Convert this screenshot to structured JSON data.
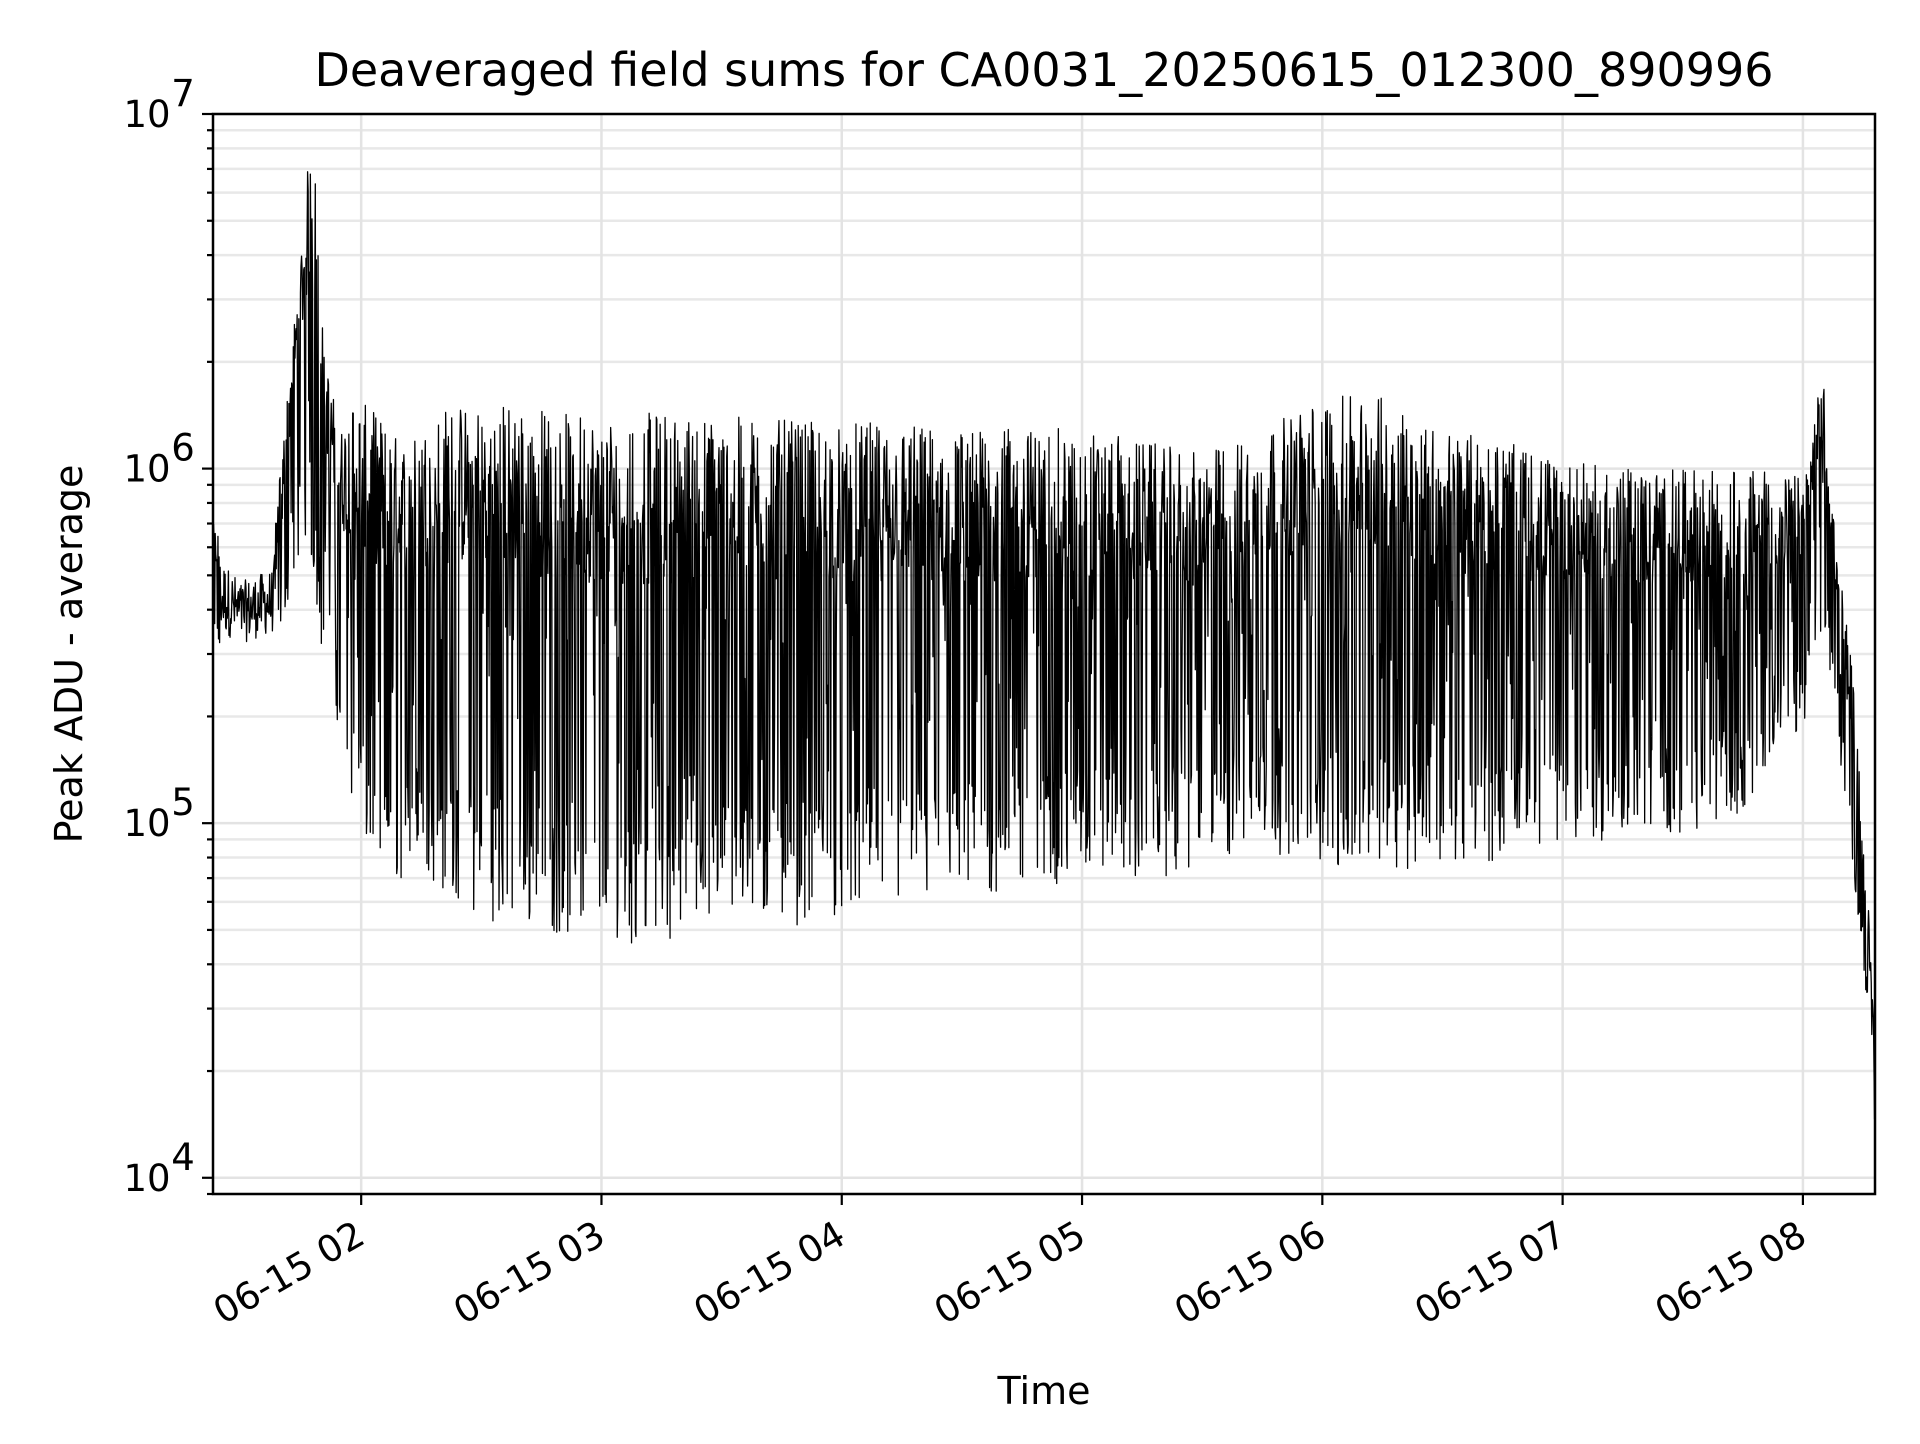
{
  "chart_data": {
    "type": "line",
    "title": "Deaveraged field sums for CA0031_20250615_012300_890996",
    "xlabel": "Time",
    "ylabel": "Peak ADU - average",
    "yscale": "log",
    "ylim": [
      9000,
      10000000
    ],
    "xlim": [
      "2025-06-15T01:23:00",
      "2025-06-15T08:18:00"
    ],
    "x_ticks": [
      "06-15 02",
      "06-15 03",
      "06-15 04",
      "06-15 05",
      "06-15 06",
      "06-15 07",
      "06-15 08"
    ],
    "y_ticks": [
      10000,
      100000,
      1000000,
      10000000
    ],
    "grid": true,
    "line_color": "#000000",
    "series": [
      {
        "x": [
          "2025-06-15T01:23:00",
          "2025-06-15T01:30:00",
          "2025-06-15T01:38:00",
          "2025-06-15T01:44:00",
          "2025-06-15T01:47:00",
          "2025-06-15T01:49:00",
          "2025-06-15T01:50:00",
          "2025-06-15T01:52:00",
          "2025-06-15T01:55:00",
          "2025-06-15T01:58:00",
          "2025-06-15T02:05:00",
          "2025-06-15T02:10:00",
          "2025-06-15T02:15:00",
          "2025-06-15T02:20:00",
          "2025-06-15T02:30:00",
          "2025-06-15T02:40:00",
          "2025-06-15T02:50:00",
          "2025-06-15T03:00:00",
          "2025-06-15T03:10:00",
          "2025-06-15T03:20:00",
          "2025-06-15T03:30:00",
          "2025-06-15T03:40:00",
          "2025-06-15T03:50:00",
          "2025-06-15T04:00:00",
          "2025-06-15T04:15:00",
          "2025-06-15T04:30:00",
          "2025-06-15T04:45:00",
          "2025-06-15T05:00:00",
          "2025-06-15T05:15:00",
          "2025-06-15T05:30:00",
          "2025-06-15T05:45:00",
          "2025-06-15T06:00:00",
          "2025-06-15T06:15:00",
          "2025-06-15T06:30:00",
          "2025-06-15T06:45:00",
          "2025-06-15T07:00:00",
          "2025-06-15T07:15:00",
          "2025-06-15T07:30:00",
          "2025-06-15T07:45:00",
          "2025-06-15T08:00:00",
          "2025-06-15T08:05:00",
          "2025-06-15T08:08:00",
          "2025-06-15T08:12:00",
          "2025-06-15T08:15:00",
          "2025-06-15T08:18:00"
        ],
        "hi": [
          700000,
          550000,
          600000,
          3200000,
          7800000,
          6600000,
          2800000,
          1800000,
          1300000,
          1600000,
          1400000,
          1200000,
          1300000,
          1500000,
          1550000,
          1550000,
          1450000,
          1450000,
          1450000,
          1450000,
          1400000,
          1400000,
          1350000,
          1350000,
          1350000,
          1300000,
          1300000,
          1300000,
          1200000,
          1100000,
          1300000,
          1600000,
          1600000,
          1300000,
          1200000,
          1050000,
          1000000,
          1000000,
          1000000,
          950000,
          1900000,
          700000,
          300000,
          100000,
          30000
        ],
        "lo": [
          300000,
          280000,
          300000,
          500000,
          600000,
          350000,
          300000,
          300000,
          150000,
          100000,
          60000,
          65000,
          70000,
          60000,
          50000,
          48000,
          45000,
          45000,
          42000,
          45000,
          50000,
          50000,
          48000,
          52000,
          55000,
          55000,
          60000,
          65000,
          65000,
          70000,
          80000,
          70000,
          70000,
          70000,
          75000,
          85000,
          85000,
          90000,
          100000,
          180000,
          350000,
          200000,
          80000,
          40000,
          13000
        ]
      }
    ]
  }
}
